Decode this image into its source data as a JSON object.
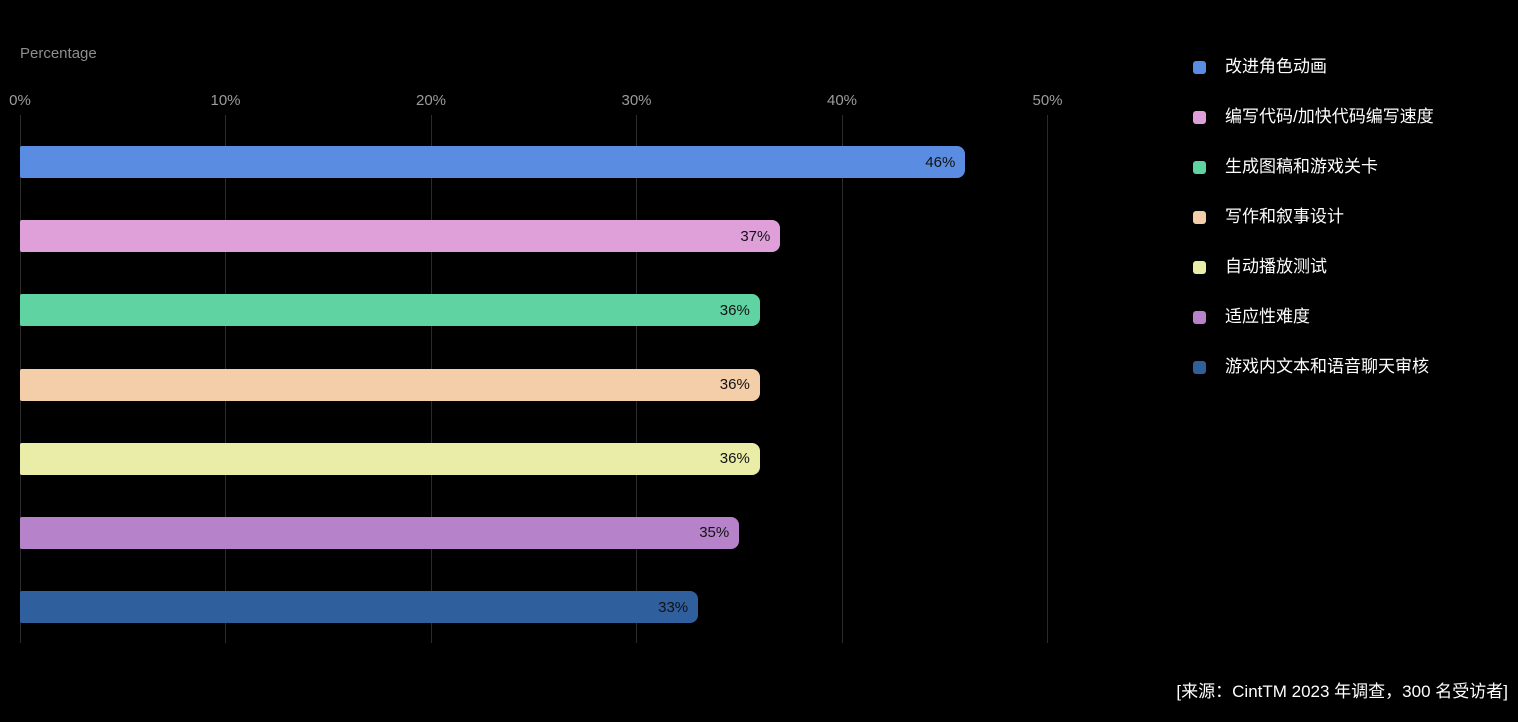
{
  "chart_data": {
    "type": "bar",
    "orientation": "horizontal",
    "title": "Percentage",
    "categories": [
      "改进角色动画",
      "编写代码/加快代码编写速度",
      "生成图稿和游戏关卡",
      "写作和叙事设计",
      "自动播放测试",
      "适应性难度",
      "游戏内文本和语音聊天审核"
    ],
    "values": [
      46,
      37,
      36,
      36,
      36,
      35,
      33
    ],
    "value_labels": [
      "46%",
      "37%",
      "36%",
      "36%",
      "36%",
      "35%",
      "33%"
    ],
    "bar_colors": [
      "#5a8de2",
      "#df9fd9",
      "#60d3a2",
      "#f4cda9",
      "#e9eda8",
      "#b683cb",
      "#2f5f9d"
    ],
    "x_axis": {
      "tick_labels": [
        "0%",
        "10%",
        "20%",
        "30%",
        "40%",
        "50%"
      ],
      "tick_values": [
        0,
        10,
        20,
        30,
        40,
        50
      ],
      "range": [
        0,
        50
      ]
    },
    "grid": "vertical-only",
    "legend_position": "right",
    "source_note": "[来源：CintTM 2023 年调查，300 名受访者]"
  },
  "legend": {
    "items": [
      {
        "label": "改进角色动画",
        "color": "#5a8de2"
      },
      {
        "label": "编写代码/加快代码编写速度",
        "color": "#df9fd9"
      },
      {
        "label": "生成图稿和游戏关卡",
        "color": "#60d3a2"
      },
      {
        "label": "写作和叙事设计",
        "color": "#f4cda9"
      },
      {
        "label": "自动播放测试",
        "color": "#e9eda8"
      },
      {
        "label": "适应性难度",
        "color": "#b683cb"
      },
      {
        "label": "游戏内文本和语音聊天审核",
        "color": "#2f5f9d"
      }
    ]
  },
  "colors": {
    "background": "#000000",
    "gridline": "#2b2b2b",
    "axis_text": "#9c9c9c",
    "title_text": "#8e8e8e",
    "value_text": "#121212",
    "legend_text": "#ffffff",
    "source_text": "#ffffff"
  }
}
